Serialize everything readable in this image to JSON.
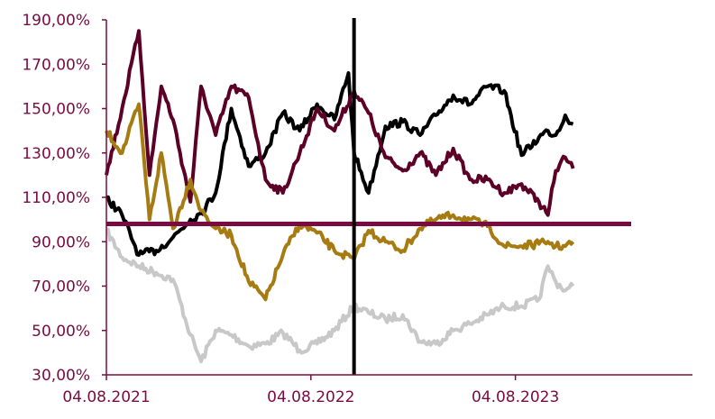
{
  "chart_data": {
    "type": "line",
    "title": "",
    "xlabel": "",
    "ylabel": "",
    "ylim": [
      30,
      190
    ],
    "y_ticks": [
      30,
      50,
      70,
      90,
      110,
      130,
      150,
      170,
      190
    ],
    "y_tick_labels": [
      "30,00%",
      "50,00%",
      "70,00%",
      "90,00%",
      "110,00%",
      "130,00%",
      "150,00%",
      "170,00%",
      "190,00%"
    ],
    "x_range": [
      "2021-08-04",
      "2024-06-15"
    ],
    "x_tick_labels": [
      "04.08.2021",
      "04.08.2022",
      "04.08.2023"
    ],
    "x_tick_dates": [
      "2021-08-04",
      "2022-08-04",
      "2023-08-04"
    ],
    "grid": false,
    "legend": "none",
    "reference_line": {
      "y": 98,
      "color": "#7a0b42"
    },
    "marker_line": {
      "x": "2022-10-20",
      "color": "#000000"
    },
    "axis_color": "#7a0b42",
    "series": [
      {
        "color": "#c8c8c8",
        "x": [
          "2021-08-04",
          "2021-09-01",
          "2021-10-01",
          "2021-11-01",
          "2021-12-01",
          "2022-01-01",
          "2022-01-20",
          "2022-02-15",
          "2022-03-15",
          "2022-04-15",
          "2022-05-15",
          "2022-06-15",
          "2022-07-15",
          "2022-08-15",
          "2022-09-15",
          "2022-10-20",
          "2022-11-15",
          "2022-12-15",
          "2023-01-15",
          "2023-02-15",
          "2023-03-15",
          "2023-04-15",
          "2023-05-15",
          "2023-06-15",
          "2023-07-15",
          "2023-08-15",
          "2023-09-15",
          "2023-10-01",
          "2023-10-15",
          "2023-11-01",
          "2023-11-15"
        ],
        "values": [
          95,
          83,
          79,
          76,
          73,
          48,
          36,
          50,
          48,
          43,
          44,
          49,
          41,
          44,
          50,
          61,
          58,
          55,
          57,
          45,
          44,
          50,
          53,
          57,
          61,
          61,
          64,
          79,
          72,
          68,
          70
        ]
      },
      {
        "color": "#000000",
        "x": [
          "2021-08-04",
          "2021-09-01",
          "2021-10-01",
          "2021-11-01",
          "2021-12-01",
          "2022-01-01",
          "2022-01-20",
          "2022-02-15",
          "2022-03-15",
          "2022-04-15",
          "2022-05-15",
          "2022-06-15",
          "2022-07-15",
          "2022-08-15",
          "2022-09-15",
          "2022-10-10",
          "2022-10-20",
          "2022-11-15",
          "2022-12-15",
          "2023-01-15",
          "2023-02-15",
          "2023-03-15",
          "2023-04-15",
          "2023-05-15",
          "2023-06-15",
          "2023-07-15",
          "2023-08-15",
          "2023-09-15",
          "2023-10-01",
          "2023-10-15",
          "2023-11-01",
          "2023-11-15"
        ],
        "values": [
          110,
          102,
          84,
          86,
          92,
          100,
          103,
          112,
          150,
          124,
          130,
          148,
          140,
          152,
          145,
          166,
          130,
          112,
          142,
          144,
          138,
          147,
          156,
          152,
          160,
          158,
          129,
          137,
          140,
          138,
          147,
          143
        ]
      },
      {
        "color": "#5c0028",
        "x": [
          "2021-08-04",
          "2021-09-01",
          "2021-10-01",
          "2021-10-20",
          "2021-11-10",
          "2021-12-01",
          "2022-01-01",
          "2022-01-20",
          "2022-02-15",
          "2022-03-15",
          "2022-04-15",
          "2022-05-15",
          "2022-06-15",
          "2022-07-15",
          "2022-08-15",
          "2022-09-15",
          "2022-10-20",
          "2022-11-15",
          "2022-12-15",
          "2023-01-15",
          "2023-02-15",
          "2023-03-15",
          "2023-04-15",
          "2023-05-15",
          "2023-06-15",
          "2023-07-15",
          "2023-08-15",
          "2023-09-15",
          "2023-10-01",
          "2023-10-15",
          "2023-11-01",
          "2023-11-15"
        ],
        "values": [
          120,
          150,
          185,
          120,
          160,
          145,
          108,
          160,
          138,
          160,
          155,
          118,
          112,
          130,
          150,
          140,
          158,
          148,
          128,
          122,
          130,
          120,
          132,
          118,
          118,
          112,
          116,
          108,
          102,
          122,
          128,
          123
        ]
      },
      {
        "color": "#a67c12",
        "x": [
          "2021-08-04",
          "2021-09-01",
          "2021-10-01",
          "2021-10-20",
          "2021-11-10",
          "2021-12-01",
          "2022-01-01",
          "2022-01-20",
          "2022-02-15",
          "2022-03-15",
          "2022-04-15",
          "2022-05-15",
          "2022-06-15",
          "2022-07-15",
          "2022-08-15",
          "2022-09-15",
          "2022-10-20",
          "2022-11-15",
          "2022-12-15",
          "2023-01-15",
          "2023-02-15",
          "2023-03-15",
          "2023-04-15",
          "2023-05-15",
          "2023-06-15",
          "2023-07-15",
          "2023-08-15",
          "2023-09-15",
          "2023-10-01",
          "2023-10-15",
          "2023-11-01",
          "2023-11-15"
        ],
        "values": [
          140,
          130,
          152,
          100,
          130,
          96,
          118,
          104,
          96,
          93,
          72,
          64,
          84,
          98,
          94,
          86,
          82,
          95,
          90,
          86,
          96,
          100,
          102,
          100,
          97,
          88,
          88,
          89,
          90,
          88,
          88,
          90
        ]
      }
    ]
  }
}
